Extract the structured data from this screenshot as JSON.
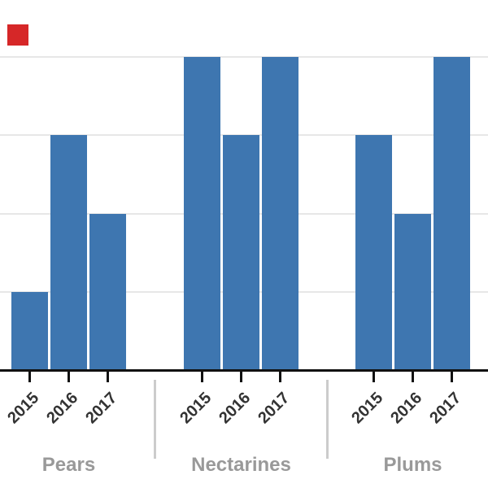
{
  "chart_data": {
    "type": "bar",
    "title": "",
    "xlabel": "",
    "ylabel": "",
    "categories": [
      "2015",
      "2016",
      "2017"
    ],
    "groups": [
      {
        "label": "Pears",
        "values": [
          1,
          3,
          2
        ]
      },
      {
        "label": "Nectarines",
        "values": [
          4,
          3,
          4
        ]
      },
      {
        "label": "Plums",
        "values": [
          3,
          2,
          4
        ]
      }
    ],
    "series_note": "single series, one bar per year per fruit group",
    "ylim": [
      0,
      4.7
    ],
    "gridline_values": [
      1,
      2,
      3,
      4
    ],
    "grid": true,
    "y_axis_tick_labels_visible": false,
    "legend": "none"
  },
  "colors": {
    "bar": "#3E76B0",
    "gridline": "#e7e7e7",
    "axis": "#111111",
    "tick_label": "#333333",
    "group_label": "#999999",
    "separator": "#cccccc",
    "background": "#ffffff",
    "marker_red": "#d62728"
  },
  "overlay_marker": {
    "name": "red-square-marker",
    "color": "#d62728"
  }
}
